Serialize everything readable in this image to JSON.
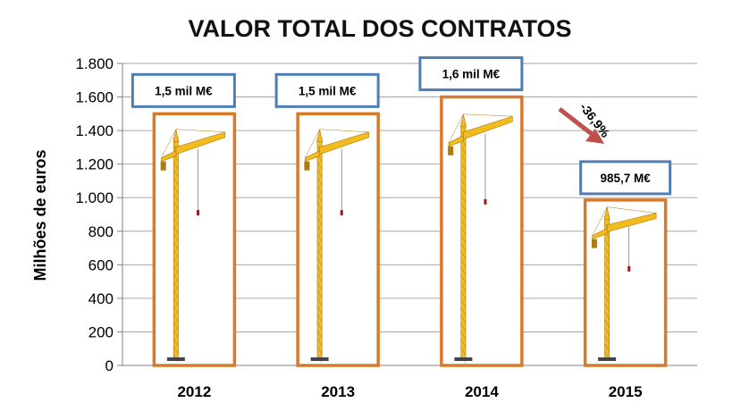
{
  "chart_data": {
    "type": "bar",
    "title": "VALOR TOTAL DOS CONTRATOS",
    "ylabel": "Milhões de euros",
    "xlabel": "",
    "categories": [
      "2012",
      "2013",
      "2014",
      "2015"
    ],
    "values": [
      1500,
      1500,
      1600,
      985.7
    ],
    "data_labels": [
      "1,5 mil M€",
      "1,5 mil M€",
      "1,6 mil M€",
      "985,7 M€"
    ],
    "ylim": [
      0,
      1800
    ],
    "yticks": [
      0,
      200,
      400,
      600,
      800,
      1000,
      1200,
      1400,
      1600,
      1800
    ],
    "ytick_labels": [
      "0",
      "200",
      "400",
      "600",
      "800",
      "1.000",
      "1.200",
      "1.400",
      "1.600",
      "1.800"
    ],
    "grid": true,
    "bar_style": "crane-image",
    "annotation": {
      "text": "-36,9%",
      "style": "arrow"
    }
  },
  "colors": {
    "bar_border": "#d97a2b",
    "label_border": "#4f7db6",
    "crane": "#f1bc1e",
    "crane_dark": "#b07a10",
    "arrow": "#c0504d",
    "grid": "#a6a6a6"
  }
}
